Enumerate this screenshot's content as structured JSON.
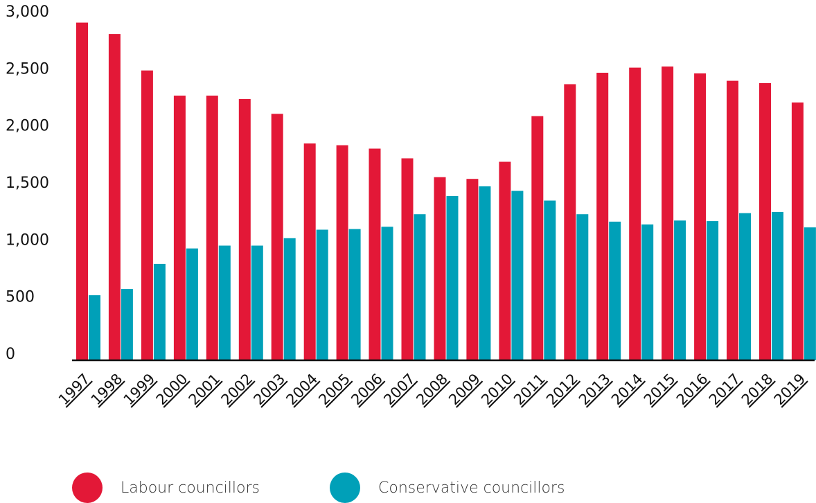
{
  "chart_data": {
    "type": "bar",
    "title": "",
    "xlabel": "",
    "ylabel": "",
    "ylim": [
      0,
      3000
    ],
    "yticks": [
      0,
      500,
      1000,
      1500,
      2000,
      2500,
      3000
    ],
    "ytick_labels": [
      "0",
      "500",
      "1,000",
      "1,500",
      "2,000",
      "2,500",
      "3,000"
    ],
    "grid": false,
    "legend_position": "bottom-left",
    "categories": [
      "1997",
      "1998",
      "1999",
      "2000",
      "2001",
      "2002",
      "2003",
      "2004",
      "2005",
      "2006",
      "2007",
      "2008",
      "2009",
      "2010",
      "2011",
      "2012",
      "2013",
      "2014",
      "2015",
      "2016",
      "2017",
      "2018",
      "2019"
    ],
    "series": [
      {
        "name": "Labour councillors",
        "color": "#e31837",
        "values": [
          2960,
          2860,
          2540,
          2320,
          2320,
          2290,
          2160,
          1900,
          1885,
          1855,
          1770,
          1605,
          1590,
          1740,
          2140,
          2420,
          2520,
          2565,
          2575,
          2515,
          2450,
          2430,
          2260
        ]
      },
      {
        "name": "Conservative councillors",
        "color": "#00a0b8",
        "values": [
          570,
          625,
          845,
          980,
          1005,
          1005,
          1070,
          1145,
          1150,
          1170,
          1280,
          1440,
          1525,
          1485,
          1400,
          1280,
          1215,
          1190,
          1225,
          1220,
          1290,
          1300,
          1165
        ]
      }
    ]
  }
}
